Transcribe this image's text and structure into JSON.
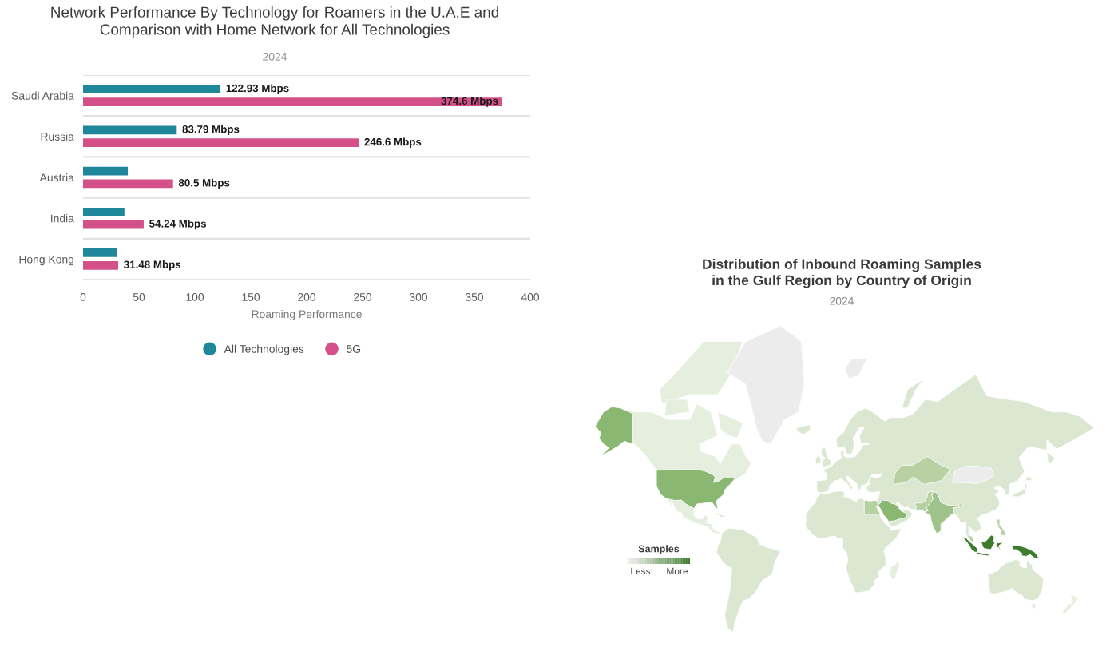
{
  "chart_data": [
    {
      "type": "bar",
      "orientation": "horizontal",
      "title": "Network Performance By Technology for Roamers in the U.A.E and\nComparison with Home Network for All Technologies",
      "subtitle": "2024",
      "categories": [
        "Saudi Arabia",
        "Russia",
        "Austria",
        "India",
        "Hong Kong"
      ],
      "series": [
        {
          "name": "All Technologies",
          "color": "#1e8799",
          "values": [
            122.93,
            83.79,
            40,
            37,
            30
          ],
          "value_labels": [
            "122.93 Mbps",
            "83.79 Mbps",
            null,
            null,
            null
          ]
        },
        {
          "name": "5G",
          "color": "#d45089",
          "values": [
            374.6,
            246.6,
            80.5,
            54.24,
            31.48
          ],
          "value_labels": [
            "374.6 Mbps",
            "246.6 Mbps",
            "80.5 Mbps",
            "54.24 Mbps",
            "31.48 Mbps"
          ]
        }
      ],
      "xlabel": "Roaming Performance",
      "xlim": [
        0,
        400
      ],
      "xticks": [
        0,
        50,
        100,
        150,
        200,
        250,
        300,
        350,
        400
      ],
      "grid": "y",
      "legend": "bottom"
    },
    {
      "type": "other",
      "title": "Distribution of Inbound Roaming Samples\nin the Gulf Region by Country of Origin",
      "subtitle": "2024",
      "clabel": "Samples",
      "annotations": [
        "Less",
        "More"
      ]
    }
  ]
}
